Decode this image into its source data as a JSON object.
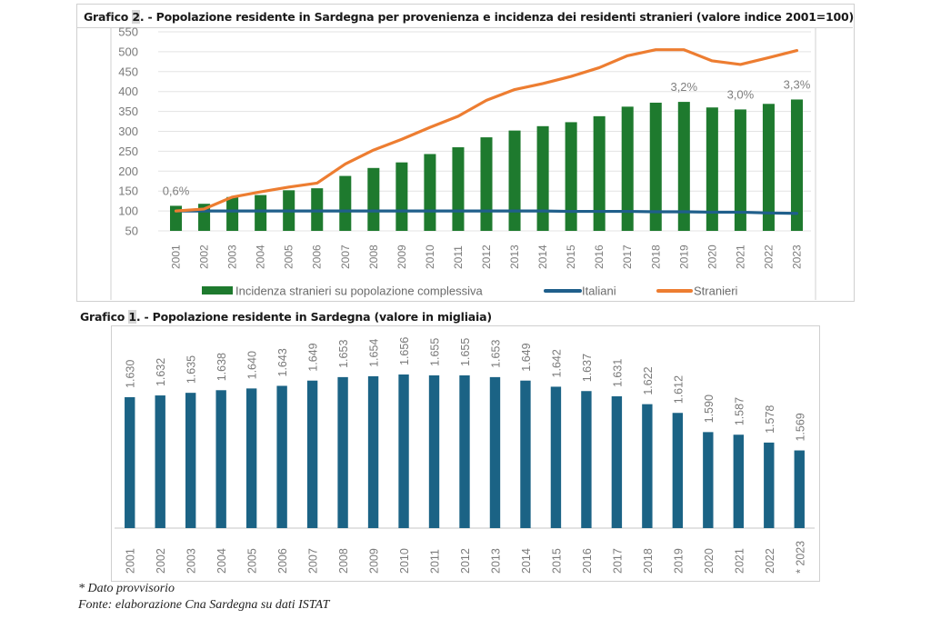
{
  "chart_data": [
    {
      "type": "bar+line",
      "title_prefix": "Grafico ",
      "title_number": "2",
      "title_rest": ". - Popolazione residente in Sardegna per provenienza e incidenza dei residenti stranieri (valore indice 2001=100)",
      "categories": [
        "2001",
        "2002",
        "2003",
        "2004",
        "2005",
        "2006",
        "2007",
        "2008",
        "2009",
        "2010",
        "2011",
        "2012",
        "2013",
        "2014",
        "2015",
        "2016",
        "2017",
        "2018",
        "2019",
        "2020",
        "2021",
        "2022",
        "2023"
      ],
      "ylim": [
        50,
        550
      ],
      "yticks": [
        50,
        100,
        150,
        200,
        250,
        300,
        350,
        400,
        450,
        500,
        550
      ],
      "grid": true,
      "legend_position": "bottom",
      "series": [
        {
          "name": "Incidenza stranieri su popolazione complessiva",
          "kind": "bar",
          "color": "#1e7a2e",
          "values": [
            113,
            118,
            135,
            140,
            152,
            157,
            188,
            208,
            222,
            243,
            260,
            285,
            302,
            313,
            323,
            338,
            362,
            372,
            374,
            360,
            355,
            369,
            380
          ]
        },
        {
          "name": "Italiani",
          "kind": "line",
          "color": "#1f5f8b",
          "values": [
            100,
            100,
            100,
            100,
            100,
            100,
            100,
            100,
            100,
            100,
            100,
            100,
            100,
            100,
            99,
            99,
            99,
            98,
            98,
            97,
            97,
            95,
            94
          ]
        },
        {
          "name": "Stranieri",
          "kind": "line",
          "color": "#ed7d31",
          "values": [
            100,
            105,
            135,
            148,
            160,
            170,
            218,
            253,
            280,
            310,
            338,
            378,
            405,
            420,
            438,
            460,
            490,
            505,
            505,
            477,
            468,
            485,
            503
          ]
        }
      ],
      "annotations": [
        {
          "category": "2001",
          "text": "0,6%"
        },
        {
          "category": "2019",
          "text": "3,2%"
        },
        {
          "category": "2021",
          "text": "3,0%"
        },
        {
          "category": "2023",
          "text": "3,3%"
        }
      ]
    },
    {
      "type": "bar",
      "title_prefix": "Grafico ",
      "title_number": "1",
      "title_rest": ". - Popolazione residente in Sardegna (valore in migliaia)",
      "categories": [
        "2001",
        "2002",
        "2003",
        "2004",
        "2005",
        "2006",
        "2007",
        "2008",
        "2009",
        "2010",
        "2011",
        "2012",
        "2013",
        "2014",
        "2015",
        "2016",
        "2017",
        "2018",
        "2019",
        "2020",
        "2021",
        "2022",
        "* 2023"
      ],
      "values": [
        1630,
        1632,
        1635,
        1638,
        1640,
        1643,
        1649,
        1653,
        1654,
        1656,
        1655,
        1655,
        1653,
        1649,
        1642,
        1637,
        1631,
        1622,
        1612,
        1590,
        1587,
        1578,
        1569
      ],
      "labels": [
        "1.630",
        "1.632",
        "1.635",
        "1.638",
        "1.640",
        "1.643",
        "1.649",
        "1.653",
        "1.654",
        "1.656",
        "1.655",
        "1.655",
        "1.653",
        "1.649",
        "1.642",
        "1.637",
        "1.631",
        "1.622",
        "1.612",
        "1.590",
        "1.587",
        "1.578",
        "1.569"
      ],
      "ylim": [
        1480,
        1680
      ],
      "color": "#1b6385",
      "xlabel": "",
      "ylabel": "",
      "grid": false
    }
  ],
  "footnotes": {
    "provisional": "* Dato provvisorio",
    "source": "Fonte: elaborazione Cna Sardegna su dati ISTAT"
  }
}
